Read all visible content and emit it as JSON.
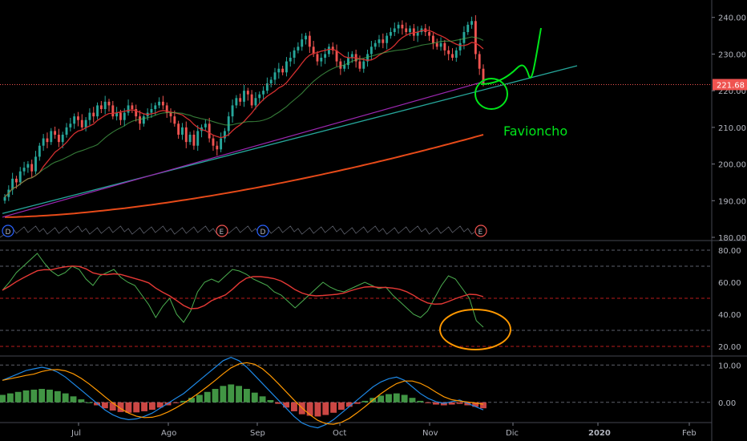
{
  "colors": {
    "background": "#000000",
    "up": "#26a69a",
    "down": "#ef5350",
    "grid": "#2a2e39",
    "axis_text": "#b2b5be",
    "ma20": "#d32f2f",
    "ma50": "#4caf50",
    "ma200": "#e64a19",
    "trendline_teal": "#26a69a",
    "trendline_purple": "#9c27b0",
    "rsi": "#4caf50",
    "rsi_signal": "#e53935",
    "macd": "#1e88e5",
    "macd_signal": "#ff9800",
    "hist_pos": "#4caf50",
    "hist_neg": "#ef5350",
    "annot_green": "#00e61a",
    "annot_orange": "#ff9800",
    "last_price_bg": "#ef5350"
  },
  "chart_data": [
    {
      "type": "candlestick",
      "pane": "price",
      "ylim": [
        180,
        243
      ],
      "y_ticks": [
        "240.00",
        "230.00",
        "220.00",
        "210.00",
        "200.00",
        "190.00",
        "180.00"
      ],
      "last_price": 221.68,
      "last_price_label": "221.68",
      "x_labels": [
        "Jul",
        "Ago",
        "Sep",
        "Oct",
        "Nov",
        "Dic",
        "2020",
        "Feb"
      ],
      "closes": [
        191,
        193,
        196,
        195,
        198,
        199,
        200,
        198,
        202,
        205,
        207,
        206,
        209,
        208,
        206,
        208,
        210,
        211,
        213,
        212,
        210,
        212,
        214,
        213,
        216,
        215,
        217,
        216,
        213,
        214,
        212,
        214,
        216,
        215,
        213,
        211,
        213,
        214,
        215,
        216,
        217,
        216,
        214,
        213,
        211,
        208,
        210,
        206,
        208,
        205,
        209,
        210,
        211,
        207,
        205,
        204,
        207,
        209,
        213,
        216,
        218,
        217,
        220,
        219,
        216,
        218,
        219,
        220,
        222,
        223,
        225,
        226,
        225,
        228,
        229,
        231,
        232,
        234,
        235,
        232,
        230,
        228,
        229,
        230,
        232,
        231,
        228,
        226,
        227,
        229,
        230,
        228,
        226,
        228,
        230,
        232,
        233,
        234,
        233,
        235,
        236,
        237,
        238,
        237,
        236,
        237,
        235,
        236,
        237,
        236,
        235,
        233,
        232,
        233,
        231,
        230,
        229,
        231,
        233,
        236,
        238,
        239,
        230,
        226,
        222
      ],
      "markers": [
        "D",
        "E",
        "D",
        "E"
      ],
      "annotation": "Favioncho"
    },
    {
      "type": "line",
      "pane": "rsi",
      "ylim": [
        15,
        85
      ],
      "y_ticks": [
        "80.00",
        "60.00",
        "40.00",
        "20.00"
      ],
      "levels": [
        80,
        70,
        50,
        30,
        20
      ],
      "series": [
        {
          "values": [
            55,
            60,
            66,
            70,
            74,
            78,
            72,
            67,
            64,
            66,
            70,
            68,
            62,
            58,
            64,
            66,
            68,
            63,
            60,
            58,
            52,
            46,
            38,
            45,
            50,
            40,
            35,
            42,
            54,
            60,
            62,
            60,
            64,
            68,
            67,
            65,
            62,
            60,
            58,
            54,
            52,
            48,
            44,
            48,
            52,
            56,
            60,
            57,
            55,
            54,
            56,
            58,
            60,
            58,
            56,
            57,
            52,
            48,
            44,
            40,
            38,
            42,
            50,
            58,
            64,
            62,
            56,
            50,
            36,
            32
          ]
        }
      ]
    },
    {
      "type": "bar",
      "pane": "macd",
      "ylim": [
        -5,
        12
      ],
      "y_ticks": [
        "10.00",
        "0.00"
      ],
      "series": [
        {
          "values": [
            2,
            2.4,
            2.8,
            3.2,
            3.4,
            3.6,
            3.4,
            3,
            2.4,
            1.6,
            0.8,
            0,
            -0.8,
            -1.6,
            -2.2,
            -2.6,
            -2.8,
            -2.7,
            -2.4,
            -2,
            -1.4,
            -0.8,
            -0.2,
            0.4,
            1.2,
            2,
            2.8,
            3.6,
            4.4,
            4.8,
            4.4,
            3.6,
            2.6,
            1.6,
            0.6,
            -0.4,
            -1.4,
            -2.4,
            -3.2,
            -3.6,
            -3.8,
            -3.4,
            -2.8,
            -2,
            -1.2,
            -0.4,
            0.4,
            1.2,
            1.8,
            2.2,
            2.4,
            2,
            1.2,
            0.4,
            -0.2,
            -0.6,
            -0.8,
            -0.6,
            -0.4,
            -0.8,
            -1.2,
            -1.6
          ]
        }
      ]
    }
  ]
}
